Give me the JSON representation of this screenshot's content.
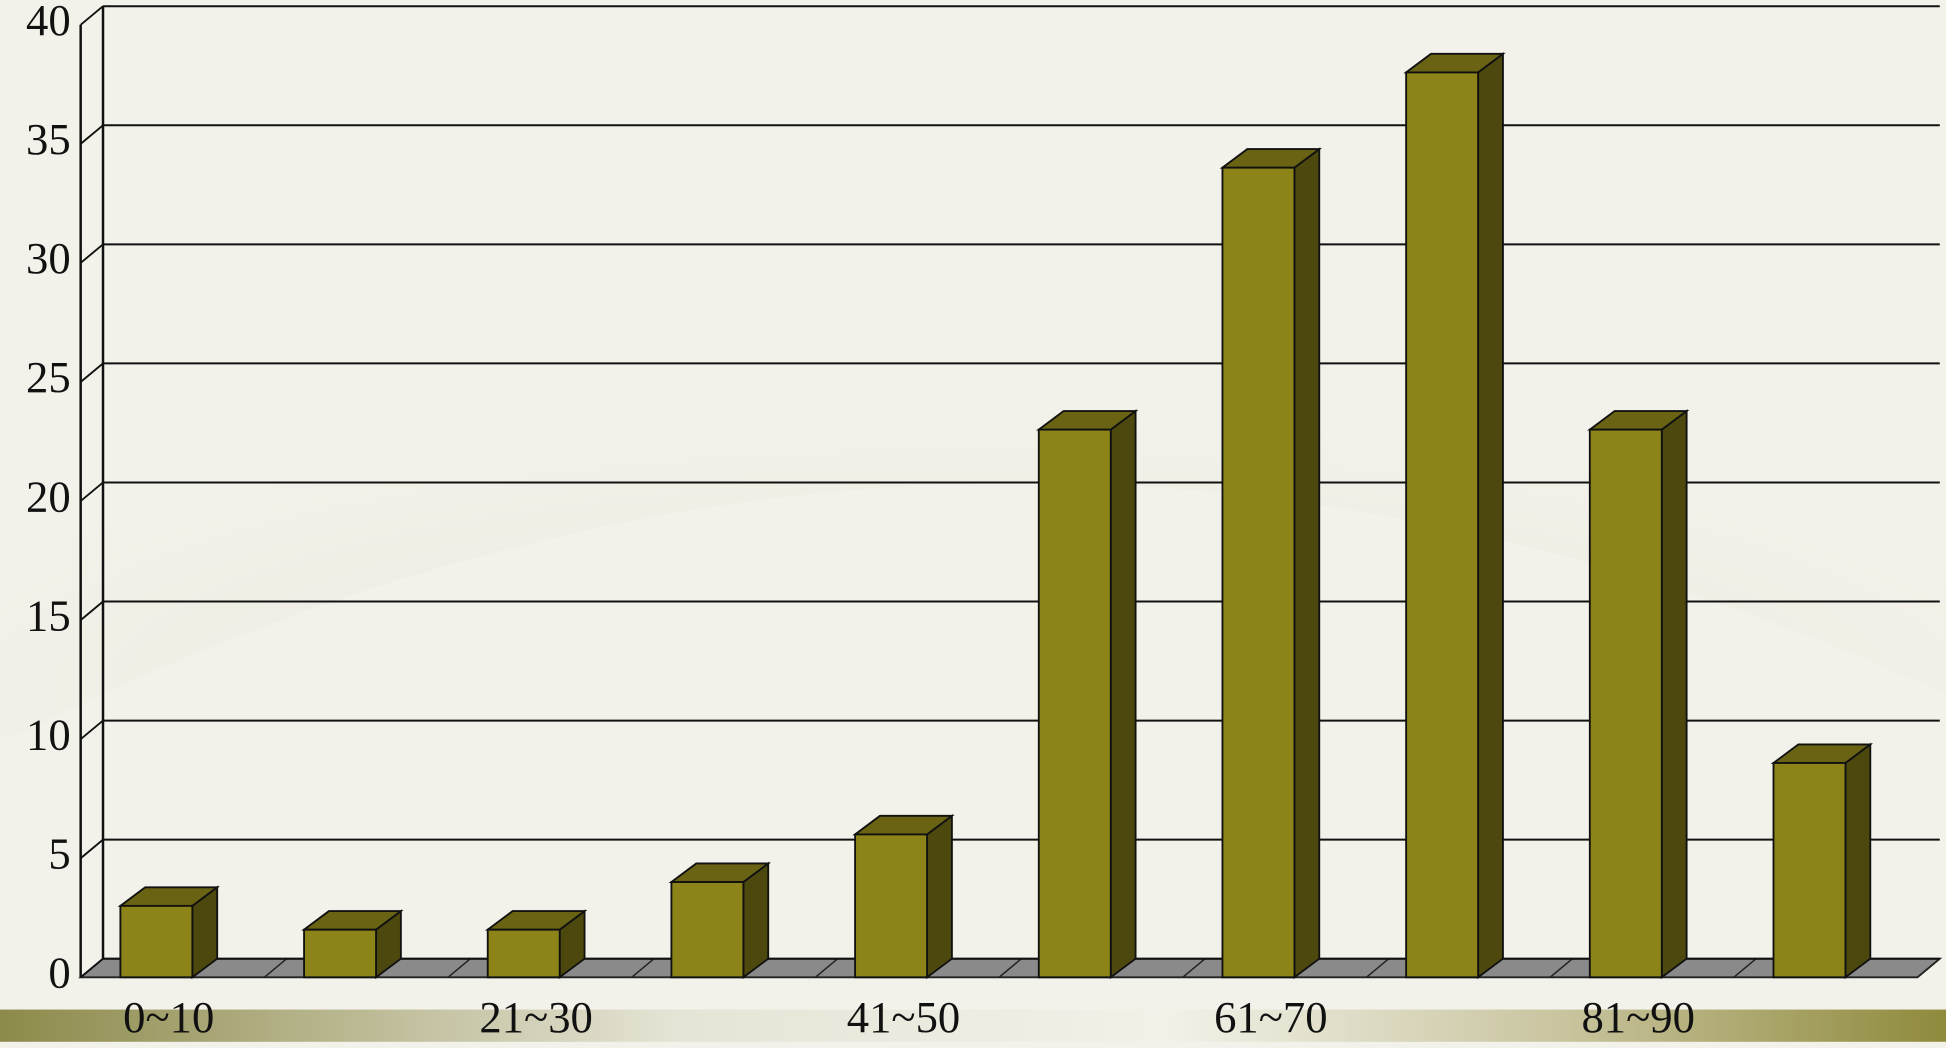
{
  "chart_data": {
    "type": "bar",
    "categories": [
      "0~10",
      null,
      "21~30",
      null,
      "41~50",
      null,
      "61~70",
      null,
      "81~90",
      null
    ],
    "values": [
      3,
      2,
      2,
      4,
      6,
      23,
      34,
      38,
      23,
      9
    ],
    "color": "#8c8419",
    "ylim": [
      0,
      40
    ],
    "yticks": [
      0,
      5,
      10,
      15,
      20,
      25,
      30,
      35,
      40
    ],
    "grid": true
  }
}
